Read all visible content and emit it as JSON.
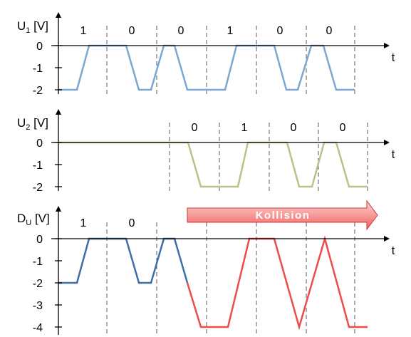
{
  "colors": {
    "axis": "#000000",
    "divider": "#595959",
    "u1_signal": "#7ba7d2",
    "u2_signal": "#b5c58a",
    "du_before_collision": "#3d6fa5",
    "du_collision": "#ef4b4b",
    "banner_fill_light": "#ffd2d2",
    "banner_fill_dark": "#f06060",
    "banner_stroke": "#c83a3a"
  },
  "panels": [
    {
      "id": "u1",
      "label_main": "U",
      "label_sub": "1",
      "label_unit": " [V]",
      "t_label": "t",
      "y_ticks": [
        "0",
        "-1",
        "-2"
      ],
      "bits": [
        "1",
        "0",
        "0",
        "1",
        "0",
        "0"
      ]
    },
    {
      "id": "u2",
      "label_main": "U",
      "label_sub": "2",
      "label_unit": " [V]",
      "t_label": "t",
      "y_ticks": [
        "0",
        "-1",
        "-2"
      ],
      "bits": [
        "0",
        "1",
        "0",
        "0"
      ]
    },
    {
      "id": "du",
      "label_main": "D",
      "label_sub": "U",
      "label_unit": " [V]",
      "t_label": "t",
      "y_ticks": [
        "0",
        "-1",
        "-2",
        "-3",
        "-4"
      ],
      "bits": [
        "1",
        "0"
      ]
    }
  ],
  "collision_banner": "Kollision"
}
